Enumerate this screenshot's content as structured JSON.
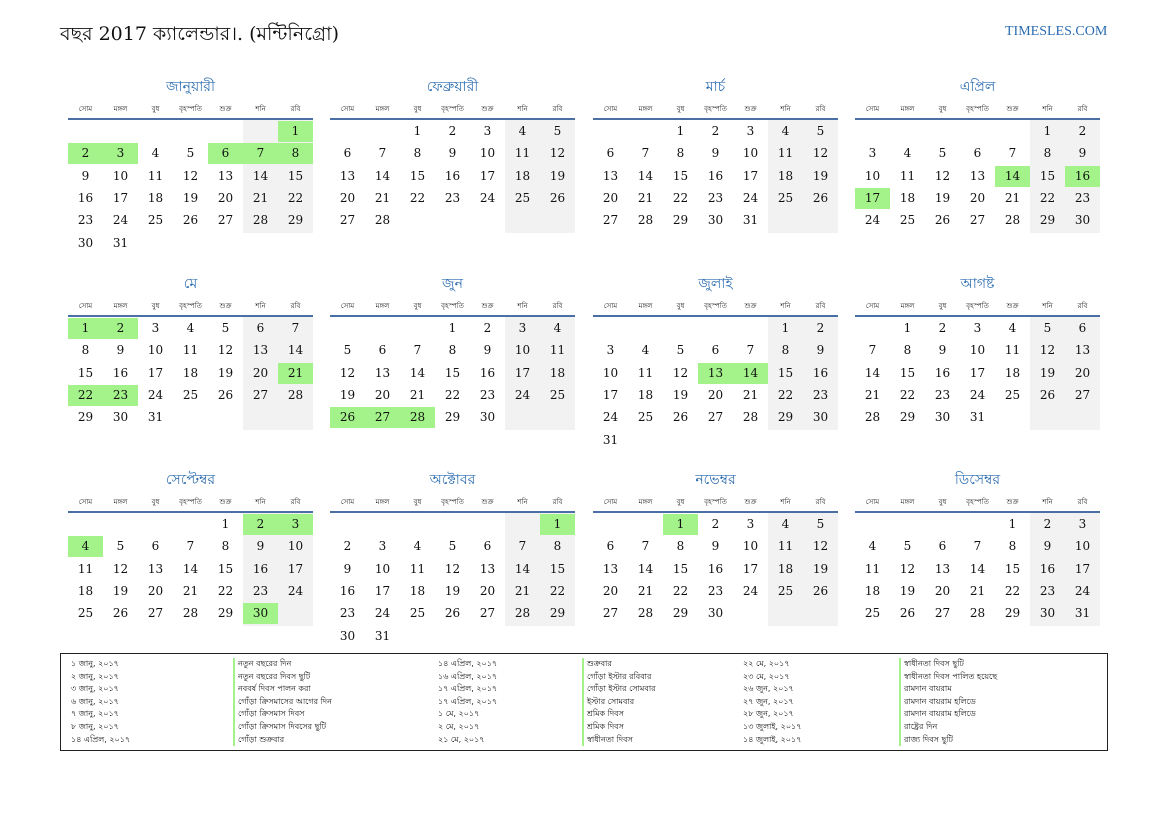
{
  "header": {
    "title": "বছর 2017 ক্যালেন্ডার।. (মন্টিনিগ্রো)",
    "brand": "TIMESLES.COM"
  },
  "weekdays": [
    "সোম",
    "মঙ্গল",
    "বুধ",
    "বৃহস্পতি",
    "শুক্র",
    "শনি",
    "রবি"
  ],
  "months": [
    {
      "name": "জানুয়ারী",
      "start": 6,
      "days": 31,
      "holidays": [
        1,
        2,
        3,
        6,
        7,
        8
      ]
    },
    {
      "name": "ফেব্রুয়ারী",
      "start": 2,
      "days": 28,
      "holidays": []
    },
    {
      "name": "মার্চ",
      "start": 2,
      "days": 31,
      "holidays": []
    },
    {
      "name": "এপ্রিল",
      "start": 5,
      "days": 30,
      "holidays": [
        14,
        16,
        17
      ]
    },
    {
      "name": "মে",
      "start": 0,
      "days": 31,
      "holidays": [
        1,
        2,
        21,
        22,
        23
      ]
    },
    {
      "name": "জুন",
      "start": 3,
      "days": 30,
      "holidays": [
        26,
        27,
        28
      ]
    },
    {
      "name": "জুলাই",
      "start": 5,
      "days": 31,
      "holidays": [
        13,
        14
      ]
    },
    {
      "name": "আগষ্ট",
      "start": 1,
      "days": 31,
      "holidays": []
    },
    {
      "name": "সেপ্টেম্বর",
      "start": 4,
      "days": 30,
      "holidays": [
        2,
        3,
        4,
        30
      ]
    },
    {
      "name": "অক্টোবর",
      "start": 6,
      "days": 31,
      "holidays": [
        1
      ]
    },
    {
      "name": "নভেম্বর",
      "start": 2,
      "days": 30,
      "holidays": [
        1
      ]
    },
    {
      "name": "ডিসেম্বর",
      "start": 4,
      "days": 31,
      "holidays": []
    }
  ],
  "holidays_list": [
    {
      "date": "১ জানু, ২০১৭",
      "name": "নতুন বছরের দিন"
    },
    {
      "date": "২ জানু, ২০১৭",
      "name": "নতুন বছরের দিবস ছুটি"
    },
    {
      "date": "৩ জানু, ২০১৭",
      "name": "নববর্ষ দিবস পালন করা"
    },
    {
      "date": "৬ জানু, ২০১৭",
      "name": "গোঁড়া ক্রিসমাসের আগের দিন"
    },
    {
      "date": "৭ জানু, ২০১৭",
      "name": "গোঁড়া ক্রিসমাস দিবস"
    },
    {
      "date": "৮ জানু, ২০১৭",
      "name": "গোঁড়া ক্রিসমাস দিবসের ছুটি"
    },
    {
      "date": "১৪ এপ্রিল, ২০১৭",
      "name": "গোঁড়া শুক্রবার"
    },
    {
      "date": "১৪ এপ্রিল, ২০১৭",
      "name": "শুক্রবার"
    },
    {
      "date": "১৬ এপ্রিল, ২০১৭",
      "name": "গোঁড়া ইস্টার রবিবার"
    },
    {
      "date": "১৭ এপ্রিল, ২০১৭",
      "name": "গোঁড়া ইস্টার সোমবার"
    },
    {
      "date": "১৭ এপ্রিল, ২০১৭",
      "name": "ইস্টার সোমবার"
    },
    {
      "date": "১ মে, ২০১৭",
      "name": "শ্রমিক দিবস"
    },
    {
      "date": "২ মে, ২০১৭",
      "name": "শ্রমিক দিবস"
    },
    {
      "date": "২১ মে, ২০১৭",
      "name": "স্বাধীনতা দিবস"
    },
    {
      "date": "২২ মে, ২০১৭",
      "name": "স্বাধীনতা দিবস ছুটি"
    },
    {
      "date": "২৩ মে, ২০১৭",
      "name": "স্বাধীনতা দিবস পালিত হয়েছে"
    },
    {
      "date": "২৬ জুন, ২০১৭",
      "name": "রামদান বায়রাম"
    },
    {
      "date": "২৭ জুন, ২০১৭",
      "name": "রামদান বায়রাম হলিডে"
    },
    {
      "date": "২৮ জুন, ২০১৭",
      "name": "রামদান বায়রাম হলিডে"
    },
    {
      "date": "১৩ জুলাই, ২০১৭",
      "name": "রাষ্ট্রের দিন"
    },
    {
      "date": "১৪ জুলাই, ২০১৭",
      "name": "রাজ্য দিবস ছুটি"
    }
  ],
  "colors": {
    "accent": "#2b6cb0",
    "holiday": "#a3f28a",
    "weekend": "#f2f2f2",
    "rule": "#4a6fa5"
  }
}
